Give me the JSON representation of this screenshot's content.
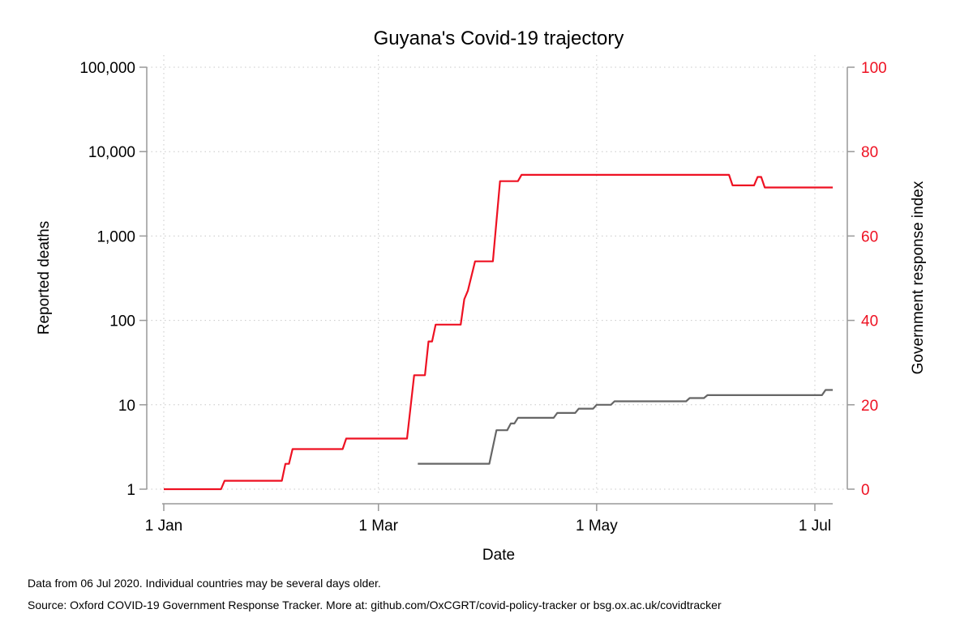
{
  "chart_data": {
    "type": "line",
    "title": "Guyana's Covid-19 trajectory",
    "xlabel": "Date",
    "ylabel": "Reported deaths",
    "y2label": "Government response index",
    "x_ticks": [
      "2020-01-01",
      "2020-03-01",
      "2020-05-01",
      "2020-07-01"
    ],
    "x_tick_labels": [
      "1 Jan",
      "1 Mar",
      "1 May",
      "1 Jul"
    ],
    "xlim": [
      "2019-12-31",
      "2020-07-08"
    ],
    "y_scale": "log",
    "ylim": [
      1,
      100000
    ],
    "y_ticks": [
      1,
      10,
      100,
      1000,
      10000,
      100000
    ],
    "y_tick_labels": [
      "1",
      "10",
      "100",
      "1,000",
      "10,000",
      "100,000"
    ],
    "y2lim": [
      0,
      100
    ],
    "y2_ticks": [
      0,
      20,
      40,
      60,
      80,
      100
    ],
    "grid": true,
    "colors": {
      "deaths": "#666666",
      "index": "#ee1122",
      "axis": "#999999"
    },
    "series": [
      {
        "key": "deaths",
        "axis": "left",
        "x": [
          "2020-03-12",
          "2020-04-01",
          "2020-04-03",
          "2020-04-06",
          "2020-04-07",
          "2020-04-08",
          "2020-04-09",
          "2020-04-19",
          "2020-04-20",
          "2020-04-25",
          "2020-04-26",
          "2020-04-30",
          "2020-05-01",
          "2020-05-05",
          "2020-05-06",
          "2020-05-26",
          "2020-05-27",
          "2020-05-31",
          "2020-06-01",
          "2020-07-03",
          "2020-07-04",
          "2020-07-06"
        ],
        "values": [
          2,
          2,
          5,
          5,
          6,
          6,
          7,
          7,
          8,
          8,
          9,
          9,
          10,
          10,
          11,
          11,
          12,
          12,
          13,
          13,
          15,
          15
        ]
      },
      {
        "key": "index",
        "axis": "right",
        "x": [
          "2020-01-01",
          "2020-01-17",
          "2020-01-18",
          "2020-02-03",
          "2020-02-04",
          "2020-02-05",
          "2020-02-06",
          "2020-02-20",
          "2020-02-21",
          "2020-03-09",
          "2020-03-11",
          "2020-03-14",
          "2020-03-15",
          "2020-03-16",
          "2020-03-17",
          "2020-03-24",
          "2020-03-25",
          "2020-03-26",
          "2020-03-28",
          "2020-04-02",
          "2020-04-04",
          "2020-04-09",
          "2020-04-10",
          "2020-06-07",
          "2020-06-08",
          "2020-06-14",
          "2020-06-15",
          "2020-06-16",
          "2020-06-17",
          "2020-07-06"
        ],
        "values": [
          0,
          0,
          2,
          2,
          6,
          6,
          9.5,
          9.5,
          12,
          12,
          27,
          27,
          35,
          35,
          39,
          39,
          45,
          47,
          54,
          54,
          73,
          73,
          74.5,
          74.5,
          72,
          72,
          74,
          74,
          71.5,
          71.5
        ]
      }
    ]
  },
  "footer": {
    "line1": "Data from 06 Jul 2020. Individual countries may be several days older.",
    "line2": "Source: Oxford COVID-19 Government Response Tracker. More at: github.com/OxCGRT/covid-policy-tracker or bsg.ox.ac.uk/covidtracker"
  }
}
